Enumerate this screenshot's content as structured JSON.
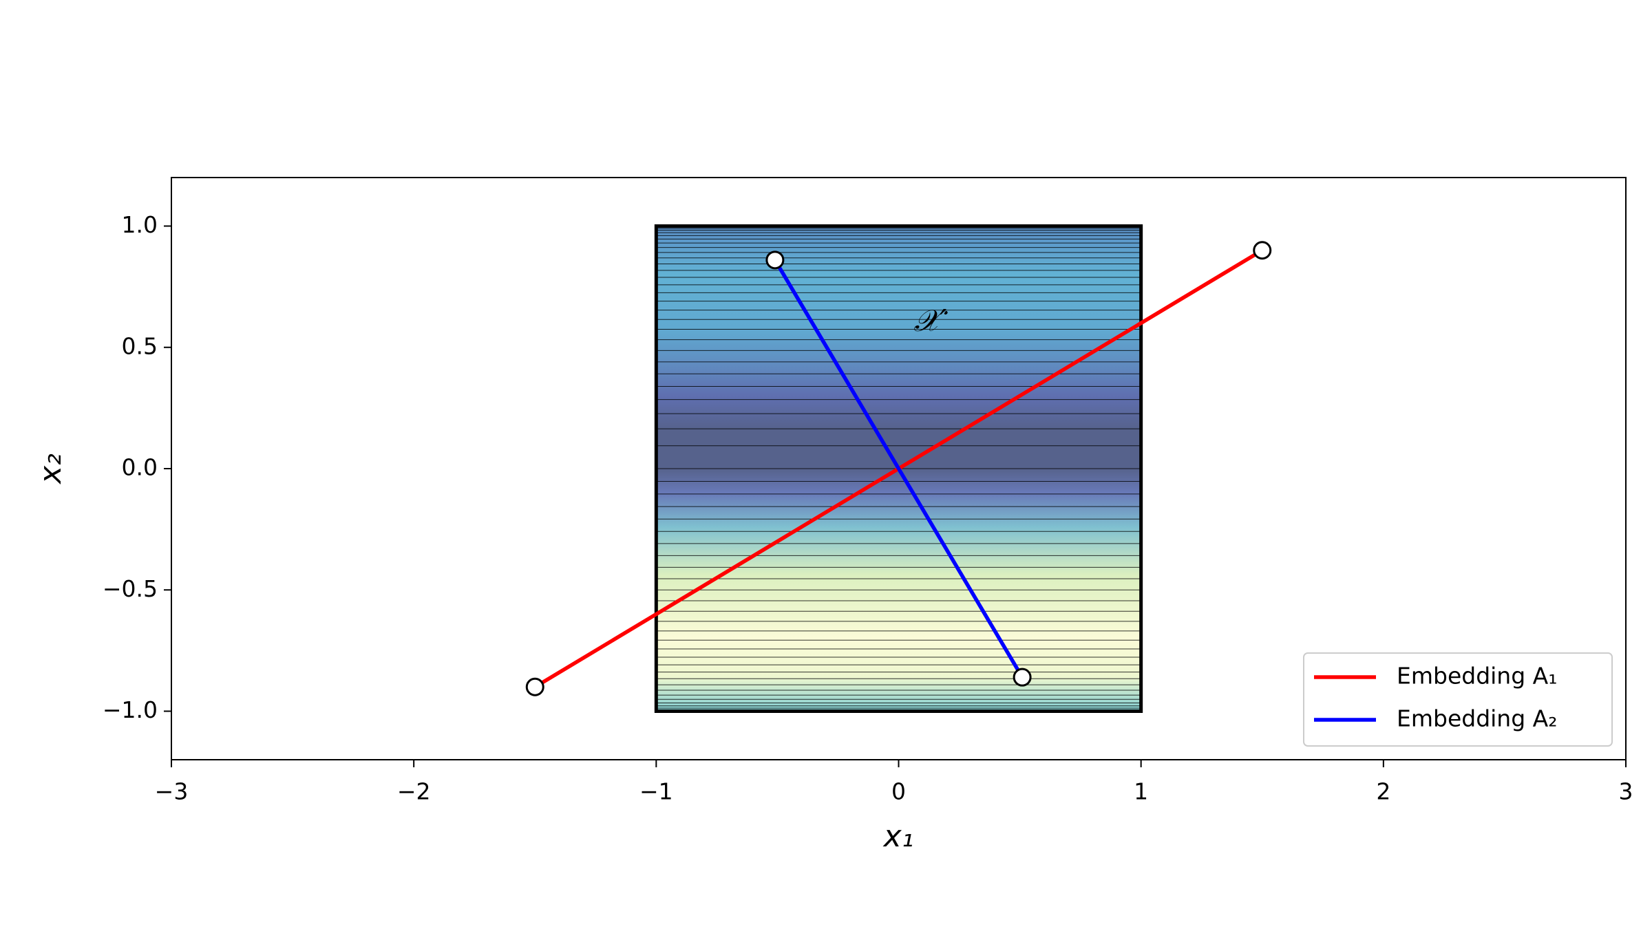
{
  "chart_data": {
    "type": "line",
    "xlabel": "x₁",
    "ylabel": "x₂",
    "xlim": [
      -3,
      3
    ],
    "ylim": [
      -1.2,
      1.2
    ],
    "xticks": [
      {
        "value": -3,
        "label": "−3"
      },
      {
        "value": -2,
        "label": "−2"
      },
      {
        "value": -1,
        "label": "−1"
      },
      0,
      1,
      2,
      3
    ],
    "yticks": [
      {
        "value": -1.0,
        "label": "−1.0"
      },
      {
        "value": -0.5,
        "label": "−0.5"
      },
      {
        "value": 0.0,
        "label": "0.0"
      },
      0.5,
      {
        "value": 1.0,
        "label": "1.0"
      }
    ],
    "region": {
      "x": [
        -1,
        1
      ],
      "y": [
        -1,
        1
      ],
      "label": "𝒳′",
      "label_x": 0.13,
      "label_y": 0.6
    },
    "legend": "lower right",
    "series": [
      {
        "name": "Embedding A₁",
        "color": "#ff0000",
        "x": [
          -1.5,
          1.5
        ],
        "values": [
          -0.9,
          0.9
        ]
      },
      {
        "name": "Embedding A₂",
        "color": "#0000ff",
        "x": [
          -0.51,
          0.51
        ],
        "values": [
          0.86,
          -0.86
        ]
      }
    ]
  }
}
